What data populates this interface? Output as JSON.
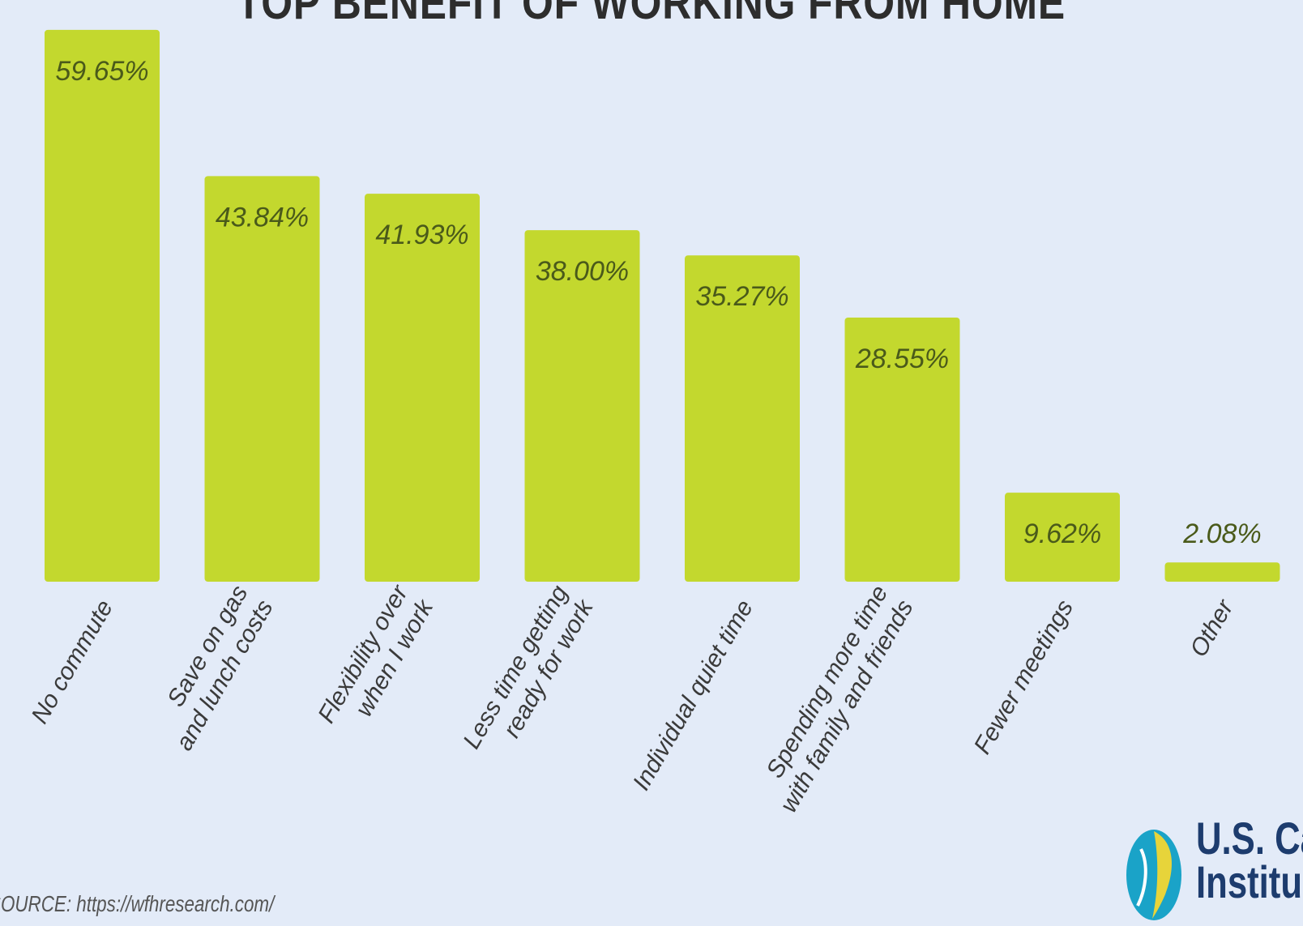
{
  "chart_data": {
    "type": "bar",
    "title": "TOP BENEFIT OF WORKING FROM HOME",
    "categories": [
      "No commute",
      "Save on gas\nand lunch costs",
      "Flexibility over\nwhen I work",
      "Less time getting\nready for work",
      "Individual quiet time",
      "Spending more time\nwith family and friends",
      "Fewer meetings",
      "Other"
    ],
    "values": [
      59.65,
      43.84,
      41.93,
      38.0,
      35.27,
      28.55,
      9.62,
      2.08
    ],
    "value_labels": [
      "59.65%",
      "43.84%",
      "41.93%",
      "38.00%",
      "35.27%",
      "28.55%",
      "9.62%",
      "2.08%"
    ],
    "ylim": [
      0,
      62
    ],
    "grid": false,
    "bar_color": "#c3d82e",
    "label_color": "#4a5a1a"
  },
  "source": "SOURCE: https://wfhresearch.com/",
  "logo": {
    "line1": "U.S. Ca",
    "line2": "Institu"
  },
  "colors": {
    "background": "#e3ebf8",
    "logo_blue": "#1d3c6e",
    "logo_teal": "#1aa3c8",
    "logo_yellow": "#e7d43a"
  }
}
